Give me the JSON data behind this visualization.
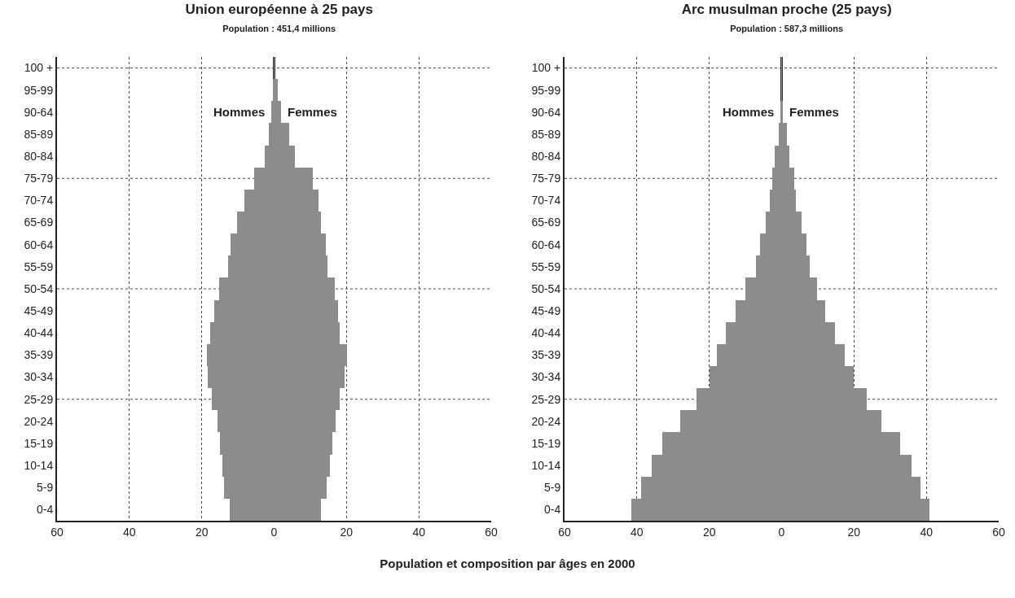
{
  "chart_data": [
    {
      "type": "bar",
      "orientation": "horizontal",
      "title": "Union européenne à 25 pays",
      "subtitle": "Population : 451,4 millions",
      "categories": [
        "100 +",
        "95-99",
        "90-64",
        "85-89",
        "80-84",
        "75-79",
        "70-74",
        "65-69",
        "60-64",
        "55-59",
        "50-54",
        "45-49",
        "40-44",
        "35-39",
        "30-34",
        "25-29",
        "20-24",
        "15-19",
        "10-14",
        "5-9",
        "0-4"
      ],
      "series": [
        {
          "name": "Hommes",
          "color": "#8c8c8c",
          "values": [
            -0.1,
            -0.3,
            -0.8,
            -1.4,
            -2.5,
            -5.6,
            -8.2,
            -10.3,
            -12.1,
            -12.7,
            -15.3,
            -16.5,
            -17.6,
            -18.6,
            -18.4,
            -17.3,
            -15.6,
            -15,
            -14.4,
            -13.9,
            -12.3
          ]
        },
        {
          "name": "Femmes",
          "color": "#8c8c8c",
          "values": [
            0.1,
            1,
            2,
            4.2,
            5.7,
            10.7,
            12.3,
            13,
            14.3,
            14.8,
            16.7,
            17.6,
            18.2,
            20.1,
            19.5,
            18.2,
            16.9,
            16,
            15.4,
            14.6,
            13
          ]
        }
      ],
      "xlim": [
        -60,
        60
      ],
      "xticks": [
        {
          "value": -60,
          "label": "60"
        },
        {
          "value": -40,
          "label": "40"
        },
        {
          "value": -20,
          "label": "20"
        },
        0,
        20,
        40,
        60
      ],
      "grid": true,
      "legend": false,
      "stacked": true,
      "annotations": [
        "Population et composition par âges en 2000"
      ]
    },
    {
      "type": "bar",
      "orientation": "horizontal",
      "title": "Arc musulman proche (25 pays)",
      "subtitle": "Population : 587,3 millions",
      "categories": [
        "100 +",
        "95-99",
        "90-64",
        "85-89",
        "80-84",
        "75-79",
        "70-74",
        "65-69",
        "60-64",
        "55-59",
        "50-54",
        "45-49",
        "40-44",
        "35-39",
        "30-34",
        "25-29",
        "20-24",
        "15-19",
        "10-14",
        "5-9",
        "0-4"
      ],
      "series": [
        {
          "name": "Hommes",
          "color": "#8c8c8c",
          "values": [
            -0.1,
            -0.2,
            -0.3,
            -0.9,
            -1.9,
            -2.6,
            -3.3,
            -4.4,
            -5.9,
            -7,
            -10,
            -12.8,
            -15.5,
            -17.9,
            -20,
            -23.5,
            -28,
            -33,
            -36,
            -38.9,
            -41.6
          ]
        },
        {
          "name": "Femmes",
          "color": "#8c8c8c",
          "values": [
            0.1,
            0.2,
            0.3,
            1.4,
            2.1,
            3.4,
            4,
            5.5,
            6.8,
            7.7,
            9.8,
            12.1,
            14.8,
            17.5,
            20,
            23.5,
            27.6,
            32.8,
            36,
            38.4,
            40.9
          ]
        }
      ],
      "xlim": [
        -60,
        60
      ],
      "xticks": [
        {
          "value": -60,
          "label": "60"
        },
        {
          "value": -40,
          "label": "40"
        },
        {
          "value": -20,
          "label": "20"
        },
        0,
        20,
        40,
        60
      ],
      "grid": true,
      "legend": false,
      "stacked": true
    }
  ]
}
